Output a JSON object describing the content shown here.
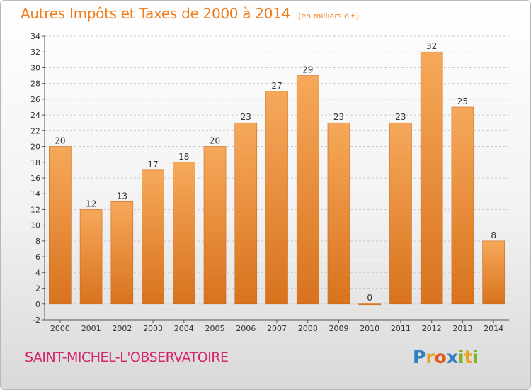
{
  "colors": {
    "title": "#f07d1b",
    "town": "#d6246e",
    "bar_light": "#f6a85a",
    "bar_dark": "#d8731e",
    "bar_edge": "#c86a1c",
    "grid": "#cccccc",
    "axis_text": "#333333"
  },
  "header": {
    "title": "Autres Impôts et Taxes de 2000 à 2014",
    "subtitle": "(en milliers d'€)"
  },
  "footer": {
    "town": "SAINT-MICHEL-L'OBSERVATOIRE",
    "logo_letters": [
      {
        "ch": "P",
        "color": "#2f7fc1"
      },
      {
        "ch": "r",
        "color": "#e8a21b"
      },
      {
        "ch": "o",
        "color": "#e35a1c"
      },
      {
        "ch": "x",
        "color": "#2f7fc1"
      },
      {
        "ch": "i",
        "color": "#7ab51d"
      },
      {
        "ch": "t",
        "color": "#e8a21b"
      },
      {
        "ch": "i",
        "color": "#7ab51d"
      }
    ]
  },
  "chart_data": {
    "type": "bar",
    "categories": [
      "2000",
      "2001",
      "2002",
      "2003",
      "2004",
      "2005",
      "2006",
      "2007",
      "2008",
      "2009",
      "2010",
      "2011",
      "2012",
      "2013",
      "2014"
    ],
    "values": [
      20,
      12,
      13,
      17,
      18,
      20,
      23,
      27,
      29,
      23,
      0,
      23,
      32,
      25,
      8
    ],
    "title": "Autres Impôts et Taxes de 2000 à 2014",
    "ylim": [
      -2,
      34
    ],
    "yticks": [
      -2,
      0,
      2,
      4,
      6,
      8,
      10,
      12,
      14,
      16,
      18,
      20,
      22,
      24,
      26,
      28,
      30,
      32,
      34
    ],
    "grid": "horizontal dashed",
    "legend": "none"
  }
}
